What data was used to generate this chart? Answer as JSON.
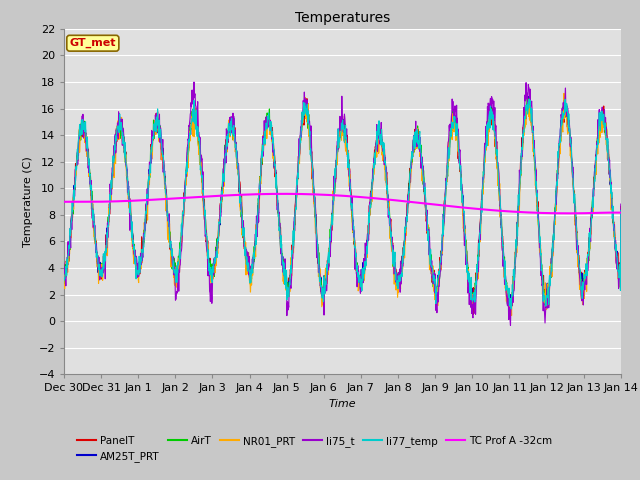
{
  "title": "Temperatures",
  "xlabel": "Time",
  "ylabel": "Temperature (C)",
  "ylim": [
    -4,
    22
  ],
  "yticks": [
    -4,
    -2,
    0,
    2,
    4,
    6,
    8,
    10,
    12,
    14,
    16,
    18,
    20,
    22
  ],
  "annotation_text": "GT_met",
  "annotation_color": "#cc0000",
  "annotation_bg": "#ffff99",
  "annotation_border": "#886600",
  "series_colors": {
    "PanelT": "#dd0000",
    "AM25T_PRT": "#0000cc",
    "AirT": "#00cc00",
    "NR01_PRT": "#ffaa00",
    "li75_t": "#9900cc",
    "li77_temp": "#00cccc",
    "TC Prof A -32cm": "#ff00ff"
  },
  "x_tick_labels": [
    "Dec 30",
    "Dec 31",
    "Jan 1",
    "Jan 2",
    "Jan 3",
    "Jan 4",
    "Jan 5",
    "Jan 6",
    "Jan 7",
    "Jan 8",
    "Jan 9",
    "Jan 10",
    "Jan 11",
    "Jan 12",
    "Jan 13",
    "Jan 14"
  ],
  "num_points": 1500
}
